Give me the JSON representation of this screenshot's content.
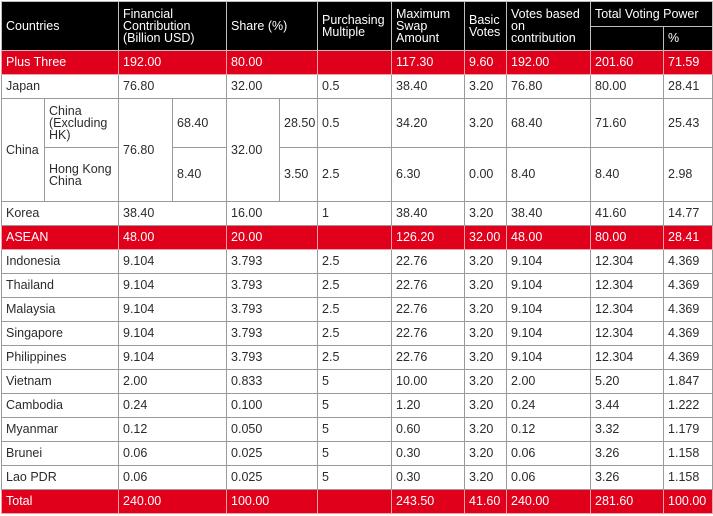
{
  "headers": {
    "countries": "Countries",
    "financial": "Financial Contribution (Billion USD)",
    "share": "Share (%)",
    "multiple": "Purchasing Multiple",
    "swap": "Maximum Swap Amount",
    "basic": "Basic Votes",
    "votes_contrib": "Votes based on contribution",
    "total_power": "Total Voting Power",
    "percent": "%"
  },
  "rows": {
    "plus_three": [
      "Plus Three",
      "192.00",
      "80.00",
      "",
      "117.30",
      "9.60",
      "192.00",
      "201.60",
      "71.59"
    ],
    "japan": [
      "Japan",
      "76.80",
      "32.00",
      "0.5",
      "38.40",
      "3.20",
      "76.80",
      "80.00",
      "28.41"
    ],
    "china": {
      "label": "China",
      "fin_total": "76.80",
      "share_total": "32.00",
      "mainland": [
        "China (Excluding HK)",
        "68.40",
        "28.50",
        "0.5",
        "34.20",
        "3.20",
        "68.40",
        "71.60",
        "25.43"
      ],
      "hk": [
        "Hong Kong China",
        "8.40",
        "3.50",
        "2.5",
        "6.30",
        "0.00",
        "8.40",
        "8.40",
        "2.98"
      ]
    },
    "korea": [
      "Korea",
      "38.40",
      "16.00",
      "1",
      "38.40",
      "3.20",
      "38.40",
      "41.60",
      "14.77"
    ],
    "asean": [
      "ASEAN",
      "48.00",
      "20.00",
      "",
      "126.20",
      "32.00",
      "48.00",
      "80.00",
      "28.41"
    ],
    "indonesia": [
      "Indonesia",
      "9.104",
      "3.793",
      "2.5",
      "22.76",
      "3.20",
      "9.104",
      "12.304",
      "4.369"
    ],
    "thailand": [
      "Thailand",
      "9.104",
      "3.793",
      "2.5",
      "22.76",
      "3.20",
      "9.104",
      "12.304",
      "4.369"
    ],
    "malaysia": [
      "Malaysia",
      "9.104",
      "3.793",
      "2.5",
      "22.76",
      "3.20",
      "9.104",
      "12.304",
      "4.369"
    ],
    "singapore": [
      "Singapore",
      "9.104",
      "3.793",
      "2.5",
      "22.76",
      "3.20",
      "9.104",
      "12.304",
      "4.369"
    ],
    "philippines": [
      "Philippines",
      "9.104",
      "3.793",
      "2.5",
      "22.76",
      "3.20",
      "9.104",
      "12.304",
      "4.369"
    ],
    "vietnam": [
      "Vietnam",
      "2.00",
      "0.833",
      "5",
      "10.00",
      "3.20",
      "2.00",
      "5.20",
      "1.847"
    ],
    "cambodia": [
      "Cambodia",
      "0.24",
      "0.100",
      "5",
      "1.20",
      "3.20",
      "0.24",
      "3.44",
      "1.222"
    ],
    "myanmar": [
      "Myanmar",
      "0.12",
      "0.050",
      "5",
      "0.60",
      "3.20",
      "0.12",
      "3.32",
      "1.179"
    ],
    "brunei": [
      "Brunei",
      "0.06",
      "0.025",
      "5",
      "0.30",
      "3.20",
      "0.06",
      "3.26",
      "1.158"
    ],
    "laos": [
      "Lao PDR",
      "0.06",
      "0.025",
      "5",
      "0.30",
      "3.20",
      "0.06",
      "3.26",
      "1.158"
    ],
    "total": [
      "Total",
      "240.00",
      "100.00",
      "",
      "243.50",
      "41.60",
      "240.00",
      "281.60",
      "100.00"
    ]
  },
  "colors": {
    "header_bg": "#000000",
    "highlight_red": "#e0001b"
  }
}
